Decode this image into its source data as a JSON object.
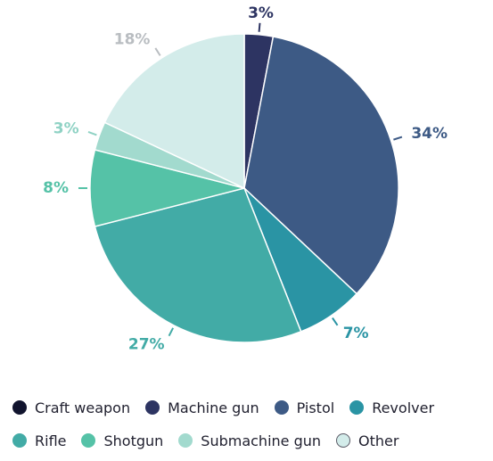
{
  "chart_data": {
    "type": "pie",
    "title": "",
    "categories": [
      "Craft weapon",
      "Machine gun",
      "Pistol",
      "Revolver",
      "Rifle",
      "Shotgun",
      "Submachine gun",
      "Other"
    ],
    "values": [
      0,
      3,
      34,
      7,
      27,
      8,
      3,
      18
    ],
    "value_labels": [
      "",
      "3%",
      "34%",
      "7%",
      "27%",
      "8%",
      "3%",
      "18%"
    ],
    "unit": "%",
    "colors": [
      "#11142e",
      "#2d3462",
      "#3d5a85",
      "#2a94a4",
      "#42aba6",
      "#55c2a7",
      "#a2dace",
      "#d3ecea"
    ],
    "label_colors": [
      "#11142e",
      "#2d3462",
      "#3d5a85",
      "#2a94a4",
      "#42aba6",
      "#55c2a7",
      "#8fd2c4",
      "#b9bdc1"
    ],
    "start_angle_deg": 0,
    "direction": "clockwise",
    "legend": {
      "placement": "bottom",
      "rows": [
        [
          0,
          1,
          2,
          3
        ],
        [
          4,
          5,
          6,
          7
        ]
      ]
    }
  }
}
